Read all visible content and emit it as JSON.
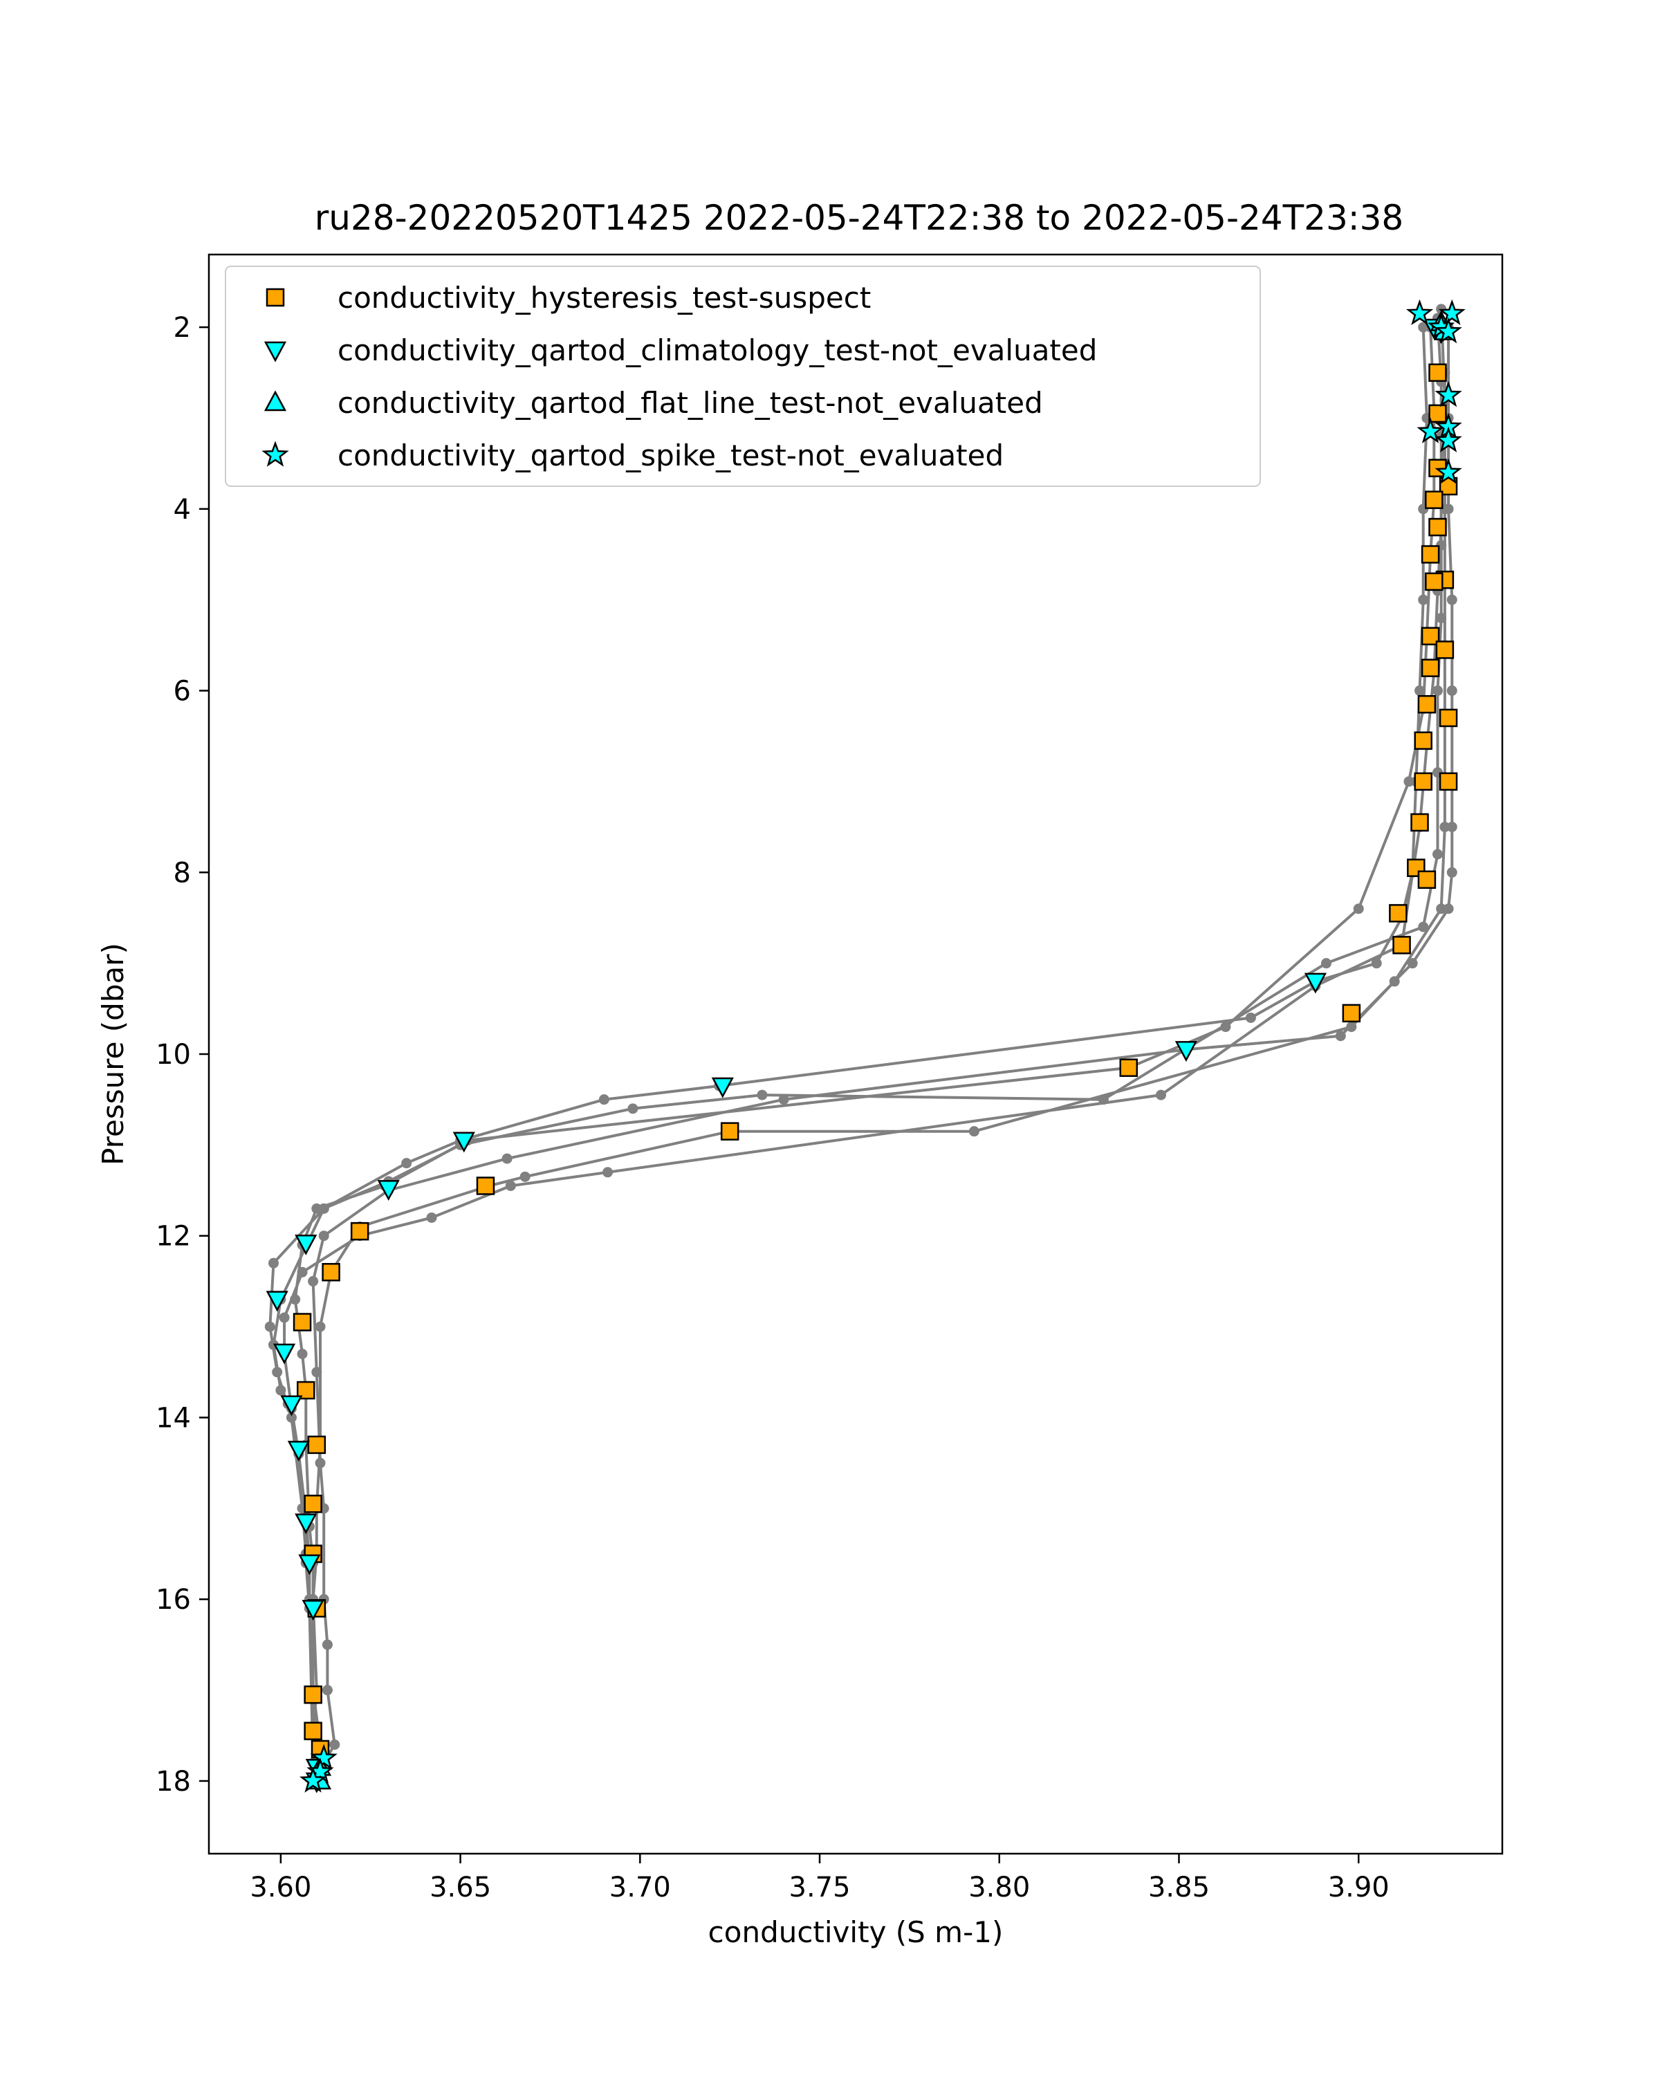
{
  "chart_data": {
    "type": "line",
    "title": "ru28-20220520T1425 2022-05-24T22:38 to 2022-05-24T23:38",
    "xlabel": "conductivity (S m-1)",
    "ylabel": "Pressure (dbar)",
    "xlim": [
      3.58,
      3.94
    ],
    "ylim": [
      18.8,
      1.2
    ],
    "y_inverted": true,
    "xticks": [
      3.6,
      3.65,
      3.7,
      3.75,
      3.8,
      3.85,
      3.9
    ],
    "xtick_labels": [
      "3.60",
      "3.65",
      "3.70",
      "3.75",
      "3.80",
      "3.85",
      "3.90"
    ],
    "yticks": [
      2,
      4,
      6,
      8,
      10,
      12,
      14,
      16,
      18
    ],
    "ytick_labels": [
      "2",
      "4",
      "6",
      "8",
      "10",
      "12",
      "14",
      "16",
      "18"
    ],
    "grid": false,
    "legend_position": "upper-left",
    "colors": {
      "profile_line": "#808080",
      "suspect": "#FFA500",
      "not_evaluated": "#00FFFF",
      "marker_edge": "#000000"
    },
    "profiles": [
      {
        "x": [
          3.918,
          3.919,
          3.918,
          3.918,
          3.917,
          3.916,
          3.915,
          3.912,
          3.905,
          3.888,
          3.87,
          3.722,
          3.69,
          3.65,
          3.635,
          3.612,
          3.598,
          3.597,
          3.599,
          3.603,
          3.606,
          3.607,
          3.608,
          3.609,
          3.611,
          3.61
        ],
        "y": [
          2.0,
          3.0,
          4.0,
          5.0,
          6.0,
          7.0,
          8.0,
          8.5,
          9.0,
          9.2,
          9.6,
          10.35,
          10.5,
          10.95,
          11.2,
          11.7,
          12.3,
          13.0,
          13.5,
          14.0,
          15.0,
          15.5,
          16.0,
          17.0,
          17.6,
          18.0
        ]
      },
      {
        "x": [
          3.925,
          3.925,
          3.925,
          3.926,
          3.926,
          3.926,
          3.926,
          3.926,
          3.925,
          3.915,
          3.895,
          3.852,
          3.74,
          3.663,
          3.63,
          3.612,
          3.609,
          3.61,
          3.611,
          3.612,
          3.612,
          3.613,
          3.613,
          3.615,
          3.612
        ],
        "y": [
          2.0,
          3.0,
          4.0,
          5.0,
          6.0,
          7.0,
          7.5,
          8.0,
          8.4,
          9.0,
          9.8,
          9.95,
          10.5,
          11.15,
          11.5,
          12.0,
          12.5,
          13.5,
          14.5,
          15.0,
          16.0,
          16.5,
          17.0,
          17.6,
          17.8
        ]
      },
      {
        "x": [
          3.924,
          3.924,
          3.924,
          3.924,
          3.924,
          3.924,
          3.924,
          3.924,
          3.923,
          3.91,
          3.898,
          3.793,
          3.725,
          3.668,
          3.658,
          3.622,
          3.614,
          3.611,
          3.611,
          3.61,
          3.61,
          3.609,
          3.61,
          3.609,
          3.611
        ],
        "y": [
          2.5,
          3.5,
          4.0,
          4.8,
          5.5,
          6.3,
          7.0,
          7.5,
          8.4,
          9.2,
          9.7,
          10.85,
          10.85,
          11.35,
          11.45,
          11.9,
          12.4,
          13.0,
          14.3,
          15.0,
          15.5,
          16.0,
          17.0,
          17.5,
          17.7
        ]
      },
      {
        "x": [
          3.92,
          3.921,
          3.921,
          3.921,
          3.92,
          3.919,
          3.918,
          3.914,
          3.9,
          3.863,
          3.836,
          3.652,
          3.629,
          3.61,
          3.606,
          3.604,
          3.606,
          3.607,
          3.607,
          3.608,
          3.609,
          3.609,
          3.609,
          3.609,
          3.61
        ],
        "y": [
          2.0,
          2.9,
          3.5,
          3.9,
          4.5,
          5.4,
          6.2,
          7.0,
          8.4,
          9.7,
          10.15,
          10.95,
          11.45,
          11.7,
          12.1,
          12.7,
          13.3,
          13.7,
          14.3,
          15.2,
          15.6,
          16.1,
          17.0,
          17.5,
          17.9
        ]
      },
      {
        "x": [
          3.922,
          3.923,
          3.923,
          3.923,
          3.922,
          3.921,
          3.919,
          3.917,
          3.912,
          3.888,
          3.845,
          3.691,
          3.664,
          3.642,
          3.622,
          3.606,
          3.601,
          3.601,
          3.603,
          3.605,
          3.607,
          3.608,
          3.608,
          3.609,
          3.61
        ],
        "y": [
          1.9,
          2.6,
          3.2,
          4.2,
          4.9,
          5.8,
          6.6,
          7.5,
          8.8,
          9.25,
          10.45,
          11.3,
          11.45,
          11.8,
          12.0,
          12.4,
          12.9,
          13.3,
          13.9,
          14.4,
          15.1,
          15.6,
          16.1,
          17.0,
          18.0
        ]
      },
      {
        "x": [
          3.923,
          3.924,
          3.923,
          3.923,
          3.923,
          3.922,
          3.922,
          3.922,
          3.918,
          3.891,
          3.829,
          3.734,
          3.698,
          3.65,
          3.63,
          3.612,
          3.6,
          3.598,
          3.6,
          3.602,
          3.605,
          3.607,
          3.607,
          3.608,
          3.609
        ],
        "y": [
          1.8,
          2.8,
          3.6,
          4.4,
          5.2,
          6.0,
          6.9,
          7.8,
          8.6,
          9.0,
          10.5,
          10.45,
          10.6,
          11.0,
          11.4,
          11.7,
          12.7,
          13.2,
          13.7,
          13.85,
          14.4,
          15.1,
          15.6,
          16.1,
          17.8
        ]
      }
    ],
    "series": [
      {
        "name": "conductivity_hysteresis_test-suspect",
        "marker": "square",
        "color": "#FFA500",
        "points": [
          [
            3.922,
            2.5
          ],
          [
            3.922,
            2.95
          ],
          [
            3.922,
            3.55
          ],
          [
            3.925,
            3.75
          ],
          [
            3.921,
            3.9
          ],
          [
            3.922,
            4.2
          ],
          [
            3.92,
            4.5
          ],
          [
            3.924,
            4.78
          ],
          [
            3.921,
            4.8
          ],
          [
            3.92,
            5.4
          ],
          [
            3.924,
            5.55
          ],
          [
            3.92,
            5.75
          ],
          [
            3.919,
            6.15
          ],
          [
            3.925,
            6.3
          ],
          [
            3.918,
            6.55
          ],
          [
            3.918,
            7.0
          ],
          [
            3.925,
            7.0
          ],
          [
            3.917,
            7.45
          ],
          [
            3.916,
            7.95
          ],
          [
            3.919,
            8.08
          ],
          [
            3.911,
            8.45
          ],
          [
            3.912,
            8.8
          ],
          [
            3.898,
            9.55
          ],
          [
            3.836,
            10.15
          ],
          [
            3.725,
            10.85
          ],
          [
            3.657,
            11.45
          ],
          [
            3.622,
            11.95
          ],
          [
            3.614,
            12.4
          ],
          [
            3.606,
            12.95
          ],
          [
            3.607,
            13.7
          ],
          [
            3.61,
            14.3
          ],
          [
            3.609,
            14.95
          ],
          [
            3.609,
            15.5
          ],
          [
            3.61,
            16.1
          ],
          [
            3.609,
            17.05
          ],
          [
            3.609,
            17.45
          ],
          [
            3.611,
            17.65
          ]
        ]
      },
      {
        "name": "conductivity_qartod_climatology_test-not_evaluated",
        "marker": "triangle-down",
        "color": "#00FFFF",
        "points": [
          [
            3.921,
            2.0
          ],
          [
            3.923,
            2.05
          ],
          [
            3.888,
            9.2
          ],
          [
            3.852,
            9.95
          ],
          [
            3.723,
            10.35
          ],
          [
            3.651,
            10.95
          ],
          [
            3.63,
            11.48
          ],
          [
            3.607,
            12.08
          ],
          [
            3.599,
            12.7
          ],
          [
            3.601,
            13.28
          ],
          [
            3.603,
            13.85
          ],
          [
            3.605,
            14.35
          ],
          [
            3.607,
            15.15
          ],
          [
            3.608,
            15.6
          ],
          [
            3.609,
            16.1
          ],
          [
            3.61,
            17.85
          ],
          [
            3.61,
            18.0
          ]
        ]
      },
      {
        "name": "conductivity_qartod_flat_line_test-not_evaluated",
        "marker": "triangle-up",
        "color": "#00FFFF",
        "points": [
          [
            3.923,
            1.95
          ],
          [
            3.924,
            2.05
          ],
          [
            3.611,
            17.85
          ],
          [
            3.611,
            18.0
          ]
        ]
      },
      {
        "name": "conductivity_qartod_spike_test-not_evaluated",
        "marker": "star",
        "color": "#00FFFF",
        "points": [
          [
            3.917,
            1.85
          ],
          [
            3.926,
            1.85
          ],
          [
            3.923,
            2.0
          ],
          [
            3.925,
            2.05
          ],
          [
            3.925,
            2.75
          ],
          [
            3.925,
            3.1
          ],
          [
            3.92,
            3.15
          ],
          [
            3.925,
            3.25
          ],
          [
            3.925,
            3.6
          ],
          [
            3.612,
            17.75
          ],
          [
            3.611,
            17.9
          ],
          [
            3.609,
            18.0
          ]
        ]
      }
    ]
  }
}
